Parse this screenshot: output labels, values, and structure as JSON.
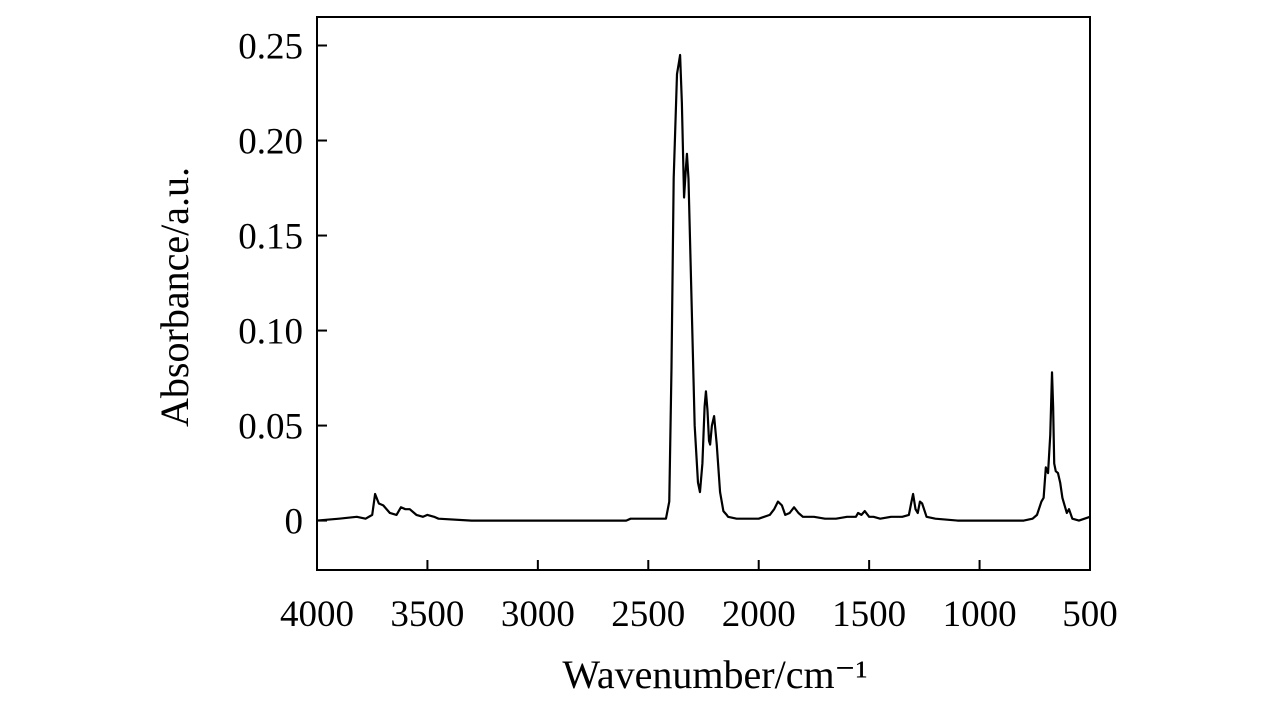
{
  "chart_data": {
    "type": "line",
    "xlabel": "Wavenumber/cm⁻¹",
    "ylabel": "Absorbance/a.u.",
    "xlim": [
      4000,
      500
    ],
    "ylim": [
      -0.026,
      0.265
    ],
    "xticks": [
      4000,
      3500,
      3000,
      2500,
      2000,
      1500,
      1000,
      500
    ],
    "yticks": [
      0,
      0.05,
      {
        "value": 0.1,
        "label": "0.10"
      },
      0.15,
      {
        "value": 0.2,
        "label": "0.20"
      },
      0.25
    ],
    "series": [
      {
        "name": "Absorbance",
        "color": "#000000",
        "x": [
          4000,
          3900,
          3820,
          3780,
          3750,
          3737,
          3720,
          3700,
          3670,
          3640,
          3620,
          3600,
          3580,
          3550,
          3520,
          3500,
          3470,
          3450,
          3300,
          3000,
          2800,
          2600,
          2580,
          2550,
          2420,
          2405,
          2395,
          2385,
          2370,
          2360,
          2356,
          2348,
          2338,
          2330,
          2325,
          2318,
          2305,
          2290,
          2275,
          2266,
          2255,
          2245,
          2239,
          2232,
          2225,
          2220,
          2212,
          2202,
          2190,
          2175,
          2160,
          2145,
          2139,
          2100,
          2000,
          1950,
          1930,
          1913,
          1895,
          1880,
          1860,
          1840,
          1820,
          1800,
          1750,
          1700,
          1650,
          1600,
          1560,
          1550,
          1535,
          1520,
          1500,
          1480,
          1450,
          1400,
          1350,
          1320,
          1310,
          1301,
          1290,
          1280,
          1270,
          1260,
          1240,
          1200,
          1100,
          1000,
          900,
          800,
          760,
          740,
          720,
          710,
          700,
          690,
          680,
          672,
          667,
          662,
          655,
          645,
          635,
          625,
          615,
          605,
          595,
          580,
          550,
          500
        ],
        "values": [
          0.0,
          0.001,
          0.002,
          0.001,
          0.003,
          0.014,
          0.009,
          0.008,
          0.004,
          0.003,
          0.007,
          0.006,
          0.006,
          0.003,
          0.002,
          0.003,
          0.002,
          0.001,
          0.0,
          0.0,
          0.0,
          0.0,
          0.001,
          0.001,
          0.001,
          0.01,
          0.08,
          0.18,
          0.235,
          0.242,
          0.245,
          0.22,
          0.17,
          0.185,
          0.193,
          0.18,
          0.12,
          0.05,
          0.02,
          0.015,
          0.03,
          0.06,
          0.068,
          0.058,
          0.042,
          0.04,
          0.05,
          0.055,
          0.04,
          0.015,
          0.005,
          0.003,
          0.002,
          0.001,
          0.001,
          0.003,
          0.006,
          0.01,
          0.008,
          0.003,
          0.004,
          0.007,
          0.004,
          0.002,
          0.002,
          0.001,
          0.001,
          0.002,
          0.002,
          0.004,
          0.003,
          0.005,
          0.002,
          0.002,
          0.001,
          0.002,
          0.002,
          0.003,
          0.009,
          0.014,
          0.006,
          0.004,
          0.01,
          0.009,
          0.002,
          0.001,
          0.0,
          0.0,
          0.0,
          0.0,
          0.001,
          0.003,
          0.01,
          0.012,
          0.028,
          0.025,
          0.045,
          0.078,
          0.06,
          0.03,
          0.026,
          0.025,
          0.02,
          0.012,
          0.008,
          0.004,
          0.006,
          0.001,
          0.0,
          0.002
        ]
      }
    ]
  }
}
